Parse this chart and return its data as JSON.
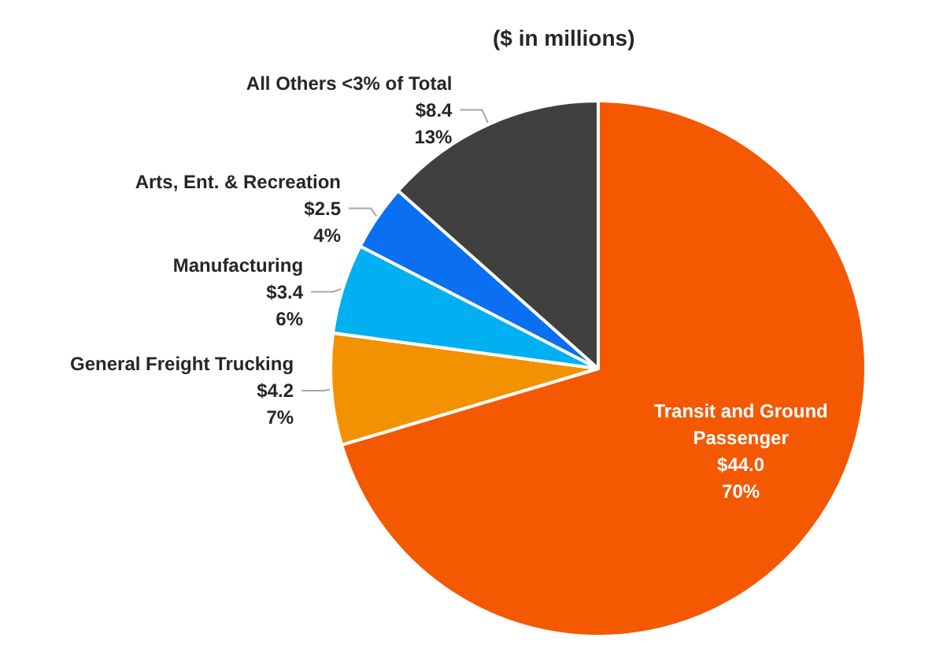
{
  "chart_data": {
    "type": "pie",
    "title": "($ in millions)",
    "categories": [
      "Transit and Ground Passenger",
      "General Freight Trucking",
      "Manufacturing",
      "Arts, Ent. & Recreation",
      "All Others <3% of Total"
    ],
    "values": [
      44.0,
      4.2,
      3.4,
      2.5,
      8.4
    ],
    "colors": [
      "#f45800",
      "#f39200",
      "#00b0f0",
      "#0a6ff0",
      "#404040"
    ],
    "value_labels": [
      "$44.0\n70%",
      "$4.2\n7%",
      "$3.4\n6%",
      "$2.5\n4%",
      "$8.4\n13%"
    ],
    "legend": false
  }
}
